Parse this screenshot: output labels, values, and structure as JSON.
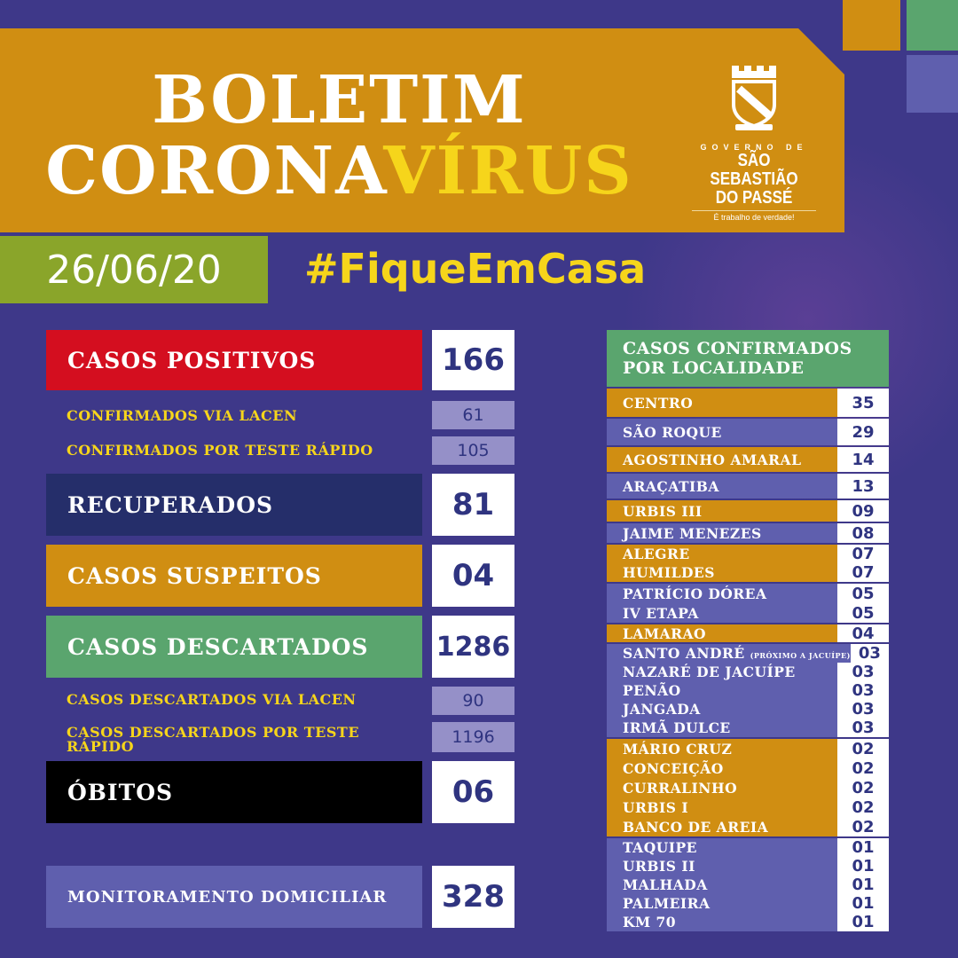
{
  "header": {
    "title_line1": "BOLETIM",
    "title_line2_a": "CORONA",
    "title_line2_b": "VÍRUS"
  },
  "logo": {
    "gov": "GOVERNO DE",
    "city1": "SÃO SEBASTIÃO",
    "city2": "DO PASSÉ",
    "slogan": "É trabalho de verdade!"
  },
  "date": "26/06/20",
  "hashtag": "#FiqueEmCasa",
  "colors": {
    "background": "#3e3889",
    "orange": "#d08e12",
    "green": "#5aa56e",
    "red": "#d40e1f",
    "navy": "#252e6a",
    "yellow": "#f6d51b",
    "light_purple": "#5f5fae"
  },
  "stats": {
    "positivos": {
      "label": "CASOS POSITIVOS",
      "value": "166"
    },
    "lacen": {
      "label": "CONFIRMADOS VIA LACEN",
      "value": "61"
    },
    "rapido": {
      "label": "CONFIRMADOS POR TESTE RÁPIDO",
      "value": "105"
    },
    "recuperados": {
      "label": "RECUPERADOS",
      "value": "81"
    },
    "suspeitos": {
      "label": "CASOS SUSPEITOS",
      "value": "04"
    },
    "descartados": {
      "label": "CASOS DESCARTADOS",
      "value": "1286"
    },
    "desc_lacen": {
      "label": "CASOS DESCARTADOS VIA LACEN",
      "value": "90"
    },
    "desc_rapido": {
      "label": "CASOS DESCARTADOS POR TESTE RÁPIDO",
      "value": "1196"
    },
    "obitos": {
      "label": "ÓBITOS",
      "value": "06"
    },
    "monitoramento": {
      "label": "MONITORAMENTO DOMICILIAR",
      "value": "328"
    }
  },
  "localidade": {
    "title": "CASOS CONFIRMADOS POR LOCALIDADE",
    "groups": [
      {
        "color": "#d08e12",
        "h": 32,
        "items": [
          {
            "name": "CENTRO",
            "value": "35"
          }
        ]
      },
      {
        "color": "#5f5fae",
        "h": 30,
        "items": [
          {
            "name": "SÃO ROQUE",
            "value": "29"
          }
        ]
      },
      {
        "color": "#d08e12",
        "h": 28,
        "items": [
          {
            "name": "AGOSTINHO AMARAL",
            "value": "14"
          }
        ]
      },
      {
        "color": "#5f5fae",
        "h": 28,
        "items": [
          {
            "name": "ARAÇATIBA",
            "value": "13"
          }
        ]
      },
      {
        "color": "#d08e12",
        "h": 24,
        "items": [
          {
            "name": "URBIS III",
            "value": "09"
          }
        ]
      },
      {
        "color": "#5f5fae",
        "h": 22,
        "items": [
          {
            "name": "JAIME MENEZES",
            "value": "08"
          }
        ]
      },
      {
        "color": "#d08e12",
        "h": 21,
        "items": [
          {
            "name": "ALEGRE",
            "value": "07"
          },
          {
            "name": "HUMILDES",
            "value": "07"
          }
        ]
      },
      {
        "color": "#5f5fae",
        "h": 22,
        "items": [
          {
            "name": "PATRÍCIO DÓREA",
            "value": "05"
          },
          {
            "name": "IV ETAPA",
            "value": "05"
          }
        ]
      },
      {
        "color": "#d08e12",
        "h": 20,
        "items": [
          {
            "name": "LAMARAO",
            "value": "04"
          }
        ]
      },
      {
        "color": "#5f5fae",
        "h": 21,
        "items": [
          {
            "name": "SANTO ANDRÉ",
            "note": "(PRÓXIMO A JACUÍPE)",
            "value": "03"
          },
          {
            "name": "NAZARÉ DE JACUÍPE",
            "value": "03"
          },
          {
            "name": "PENÃO",
            "value": "03"
          },
          {
            "name": "JANGADA",
            "value": "03"
          },
          {
            "name": "IRMÃ DULCE",
            "value": "03"
          }
        ]
      },
      {
        "color": "#d08e12",
        "h": 22,
        "items": [
          {
            "name": "MÁRIO CRUZ",
            "value": "02"
          },
          {
            "name": "CONCEIÇÃO",
            "value": "02"
          },
          {
            "name": "CURRALINHO",
            "value": "02"
          },
          {
            "name": "URBIS I",
            "value": "02"
          },
          {
            "name": "BANCO DE AREIA",
            "value": "02"
          }
        ]
      },
      {
        "color": "#5f5fae",
        "h": 21,
        "items": [
          {
            "name": "TAQUIPE",
            "value": "01"
          },
          {
            "name": "URBIS II",
            "value": "01"
          },
          {
            "name": "MALHADA",
            "value": "01"
          },
          {
            "name": "PALMEIRA",
            "value": "01"
          },
          {
            "name": "KM 70",
            "value": "01"
          }
        ]
      }
    ]
  }
}
